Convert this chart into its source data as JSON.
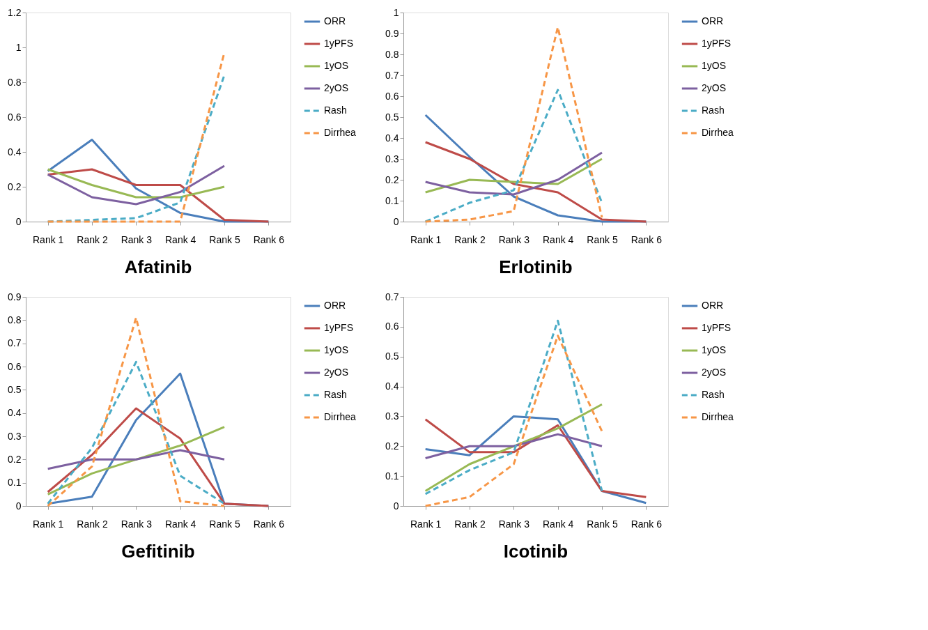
{
  "chart_data": [
    {
      "type": "line",
      "title": "Afatinib",
      "categories": [
        "Rank 1",
        "Rank 2",
        "Rank 3",
        "Rank 4",
        "Rank 5",
        "Rank 6"
      ],
      "ylim": [
        0,
        1.2
      ],
      "yticks": [
        0,
        0.2,
        0.4,
        0.6,
        0.8,
        1,
        1.2
      ],
      "grid": false,
      "legend": "right",
      "series": [
        {
          "name": "ORR",
          "color": "#4a7ebb",
          "line_style": "solid",
          "values": [
            0.29,
            0.47,
            0.19,
            0.05,
            0,
            0
          ]
        },
        {
          "name": "1yPFS",
          "color": "#be4b48",
          "line_style": "solid",
          "values": [
            0.27,
            0.3,
            0.21,
            0.21,
            0.01,
            0
          ]
        },
        {
          "name": "1yOS",
          "color": "#98b954",
          "line_style": "solid",
          "values": [
            0.3,
            0.21,
            0.14,
            0.14,
            0.2,
            null
          ]
        },
        {
          "name": "2yOS",
          "color": "#7d60a0",
          "line_style": "solid",
          "values": [
            0.27,
            0.14,
            0.1,
            0.17,
            0.32,
            null
          ]
        },
        {
          "name": "Rash",
          "color": "#4bacc6",
          "line_style": "dashed",
          "values": [
            0,
            0.01,
            0.02,
            0.11,
            0.84,
            null
          ]
        },
        {
          "name": "Dirrhea",
          "color": "#f79646",
          "line_style": "dashed",
          "values": [
            0,
            0,
            0,
            0,
            0.97,
            null
          ]
        }
      ]
    },
    {
      "type": "line",
      "title": "Erlotinib",
      "categories": [
        "Rank 1",
        "Rank 2",
        "Rank 3",
        "Rank 4",
        "Rank 5",
        "Rank 6"
      ],
      "ylim": [
        0,
        1
      ],
      "yticks": [
        0,
        0.1,
        0.2,
        0.3,
        0.4,
        0.5,
        0.6,
        0.7,
        0.8,
        0.9,
        1
      ],
      "grid": false,
      "legend": "right",
      "series": [
        {
          "name": "ORR",
          "color": "#4a7ebb",
          "line_style": "solid",
          "values": [
            0.51,
            0.31,
            0.12,
            0.03,
            0,
            0
          ]
        },
        {
          "name": "1yPFS",
          "color": "#be4b48",
          "line_style": "solid",
          "values": [
            0.38,
            0.3,
            0.18,
            0.14,
            0.01,
            0
          ]
        },
        {
          "name": "1yOS",
          "color": "#98b954",
          "line_style": "solid",
          "values": [
            0.14,
            0.2,
            0.19,
            0.18,
            0.3,
            null
          ]
        },
        {
          "name": "2yOS",
          "color": "#7d60a0",
          "line_style": "solid",
          "values": [
            0.19,
            0.14,
            0.13,
            0.2,
            0.33,
            null
          ]
        },
        {
          "name": "Rash",
          "color": "#4bacc6",
          "line_style": "dashed",
          "values": [
            0,
            0.09,
            0.15,
            0.63,
            0.09,
            null
          ]
        },
        {
          "name": "Dirrhea",
          "color": "#f79646",
          "line_style": "dashed",
          "values": [
            0,
            0.01,
            0.05,
            0.93,
            0.02,
            null
          ]
        }
      ]
    },
    {
      "type": "line",
      "title": "Gefitinib",
      "categories": [
        "Rank 1",
        "Rank 2",
        "Rank 3",
        "Rank 4",
        "Rank 5",
        "Rank 6"
      ],
      "ylim": [
        0,
        0.9
      ],
      "yticks": [
        0,
        0.1,
        0.2,
        0.3,
        0.4,
        0.5,
        0.6,
        0.7,
        0.8,
        0.9
      ],
      "grid": false,
      "legend": "right",
      "series": [
        {
          "name": "ORR",
          "color": "#4a7ebb",
          "line_style": "solid",
          "values": [
            0.01,
            0.04,
            0.37,
            0.57,
            0.01,
            0
          ]
        },
        {
          "name": "1yPFS",
          "color": "#be4b48",
          "line_style": "solid",
          "values": [
            0.06,
            0.22,
            0.42,
            0.29,
            0.01,
            0
          ]
        },
        {
          "name": "1yOS",
          "color": "#98b954",
          "line_style": "solid",
          "values": [
            0.05,
            0.14,
            0.2,
            0.26,
            0.34,
            null
          ]
        },
        {
          "name": "2yOS",
          "color": "#7d60a0",
          "line_style": "solid",
          "values": [
            0.16,
            0.2,
            0.2,
            0.24,
            0.2,
            null
          ]
        },
        {
          "name": "Rash",
          "color": "#4bacc6",
          "line_style": "dashed",
          "values": [
            0.01,
            0.25,
            0.62,
            0.13,
            0.01,
            null
          ]
        },
        {
          "name": "Dirrhea",
          "color": "#f79646",
          "line_style": "dashed",
          "values": [
            0,
            0.17,
            0.81,
            0.02,
            0,
            null
          ]
        }
      ]
    },
    {
      "type": "line",
      "title": "Icotinib",
      "categories": [
        "Rank 1",
        "Rank 2",
        "Rank 3",
        "Rank 4",
        "Rank 5",
        "Rank 6"
      ],
      "ylim": [
        0,
        0.7
      ],
      "yticks": [
        0,
        0.1,
        0.2,
        0.3,
        0.4,
        0.5,
        0.6,
        0.7
      ],
      "grid": false,
      "legend": "right",
      "series": [
        {
          "name": "ORR",
          "color": "#4a7ebb",
          "line_style": "solid",
          "values": [
            0.19,
            0.17,
            0.3,
            0.29,
            0.05,
            0.01
          ]
        },
        {
          "name": "1yPFS",
          "color": "#be4b48",
          "line_style": "solid",
          "values": [
            0.29,
            0.18,
            0.18,
            0.27,
            0.05,
            0.03
          ]
        },
        {
          "name": "1yOS",
          "color": "#98b954",
          "line_style": "solid",
          "values": [
            0.05,
            0.14,
            0.2,
            0.26,
            0.34,
            null
          ]
        },
        {
          "name": "2yOS",
          "color": "#7d60a0",
          "line_style": "solid",
          "values": [
            0.16,
            0.2,
            0.2,
            0.24,
            0.2,
            null
          ]
        },
        {
          "name": "Rash",
          "color": "#4bacc6",
          "line_style": "dashed",
          "values": [
            0.04,
            0.12,
            0.18,
            0.62,
            0.05,
            null
          ]
        },
        {
          "name": "Dirrhea",
          "color": "#f79646",
          "line_style": "dashed",
          "values": [
            0,
            0.03,
            0.14,
            0.57,
            0.25,
            null
          ]
        }
      ]
    }
  ]
}
